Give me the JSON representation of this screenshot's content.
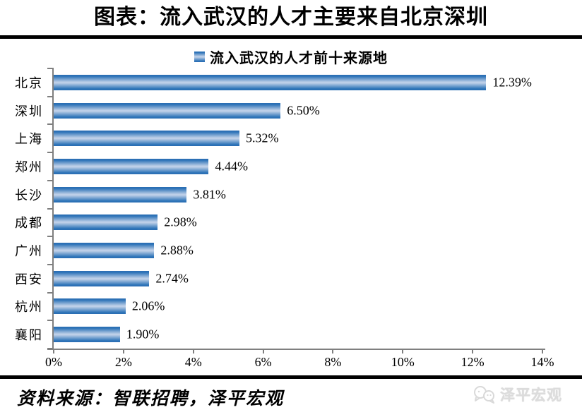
{
  "page": {
    "title": "图表：流入武汉的人才主要来自北京深圳",
    "source_note": "资料来源：智联招聘，泽平宏观",
    "watermark_text": "泽平宏观"
  },
  "icons": {
    "legend_swatch": "blue-gradient-square",
    "watermark_logo": "chat-bubbles-logo"
  },
  "colors": {
    "bar_dark": "#2E74B8",
    "bar_light": "#C3D3EA",
    "axis": "#7F7F7F",
    "rule": "#000000",
    "watermark": "#D9D9D9"
  },
  "chart_data": {
    "type": "bar",
    "orientation": "horizontal",
    "legend": "流入武汉的人才前十来源地",
    "legend_position": "top-center",
    "categories": [
      "北京",
      "深圳",
      "上海",
      "郑州",
      "长沙",
      "成都",
      "广州",
      "西安",
      "杭州",
      "襄阳"
    ],
    "values": [
      12.39,
      6.5,
      5.32,
      4.44,
      3.81,
      2.98,
      2.88,
      2.74,
      2.06,
      1.9
    ],
    "value_labels": [
      "12.39%",
      "6.50%",
      "5.32%",
      "4.44%",
      "3.81%",
      "2.98%",
      "2.88%",
      "2.74%",
      "2.06%",
      "1.90%"
    ],
    "xlabel": "",
    "ylabel": "",
    "xlim": [
      0,
      14
    ],
    "x_tick_step": 2,
    "x_tick_labels": [
      "0%",
      "2%",
      "4%",
      "6%",
      "8%",
      "10%",
      "12%",
      "14%"
    ],
    "grid": false
  }
}
